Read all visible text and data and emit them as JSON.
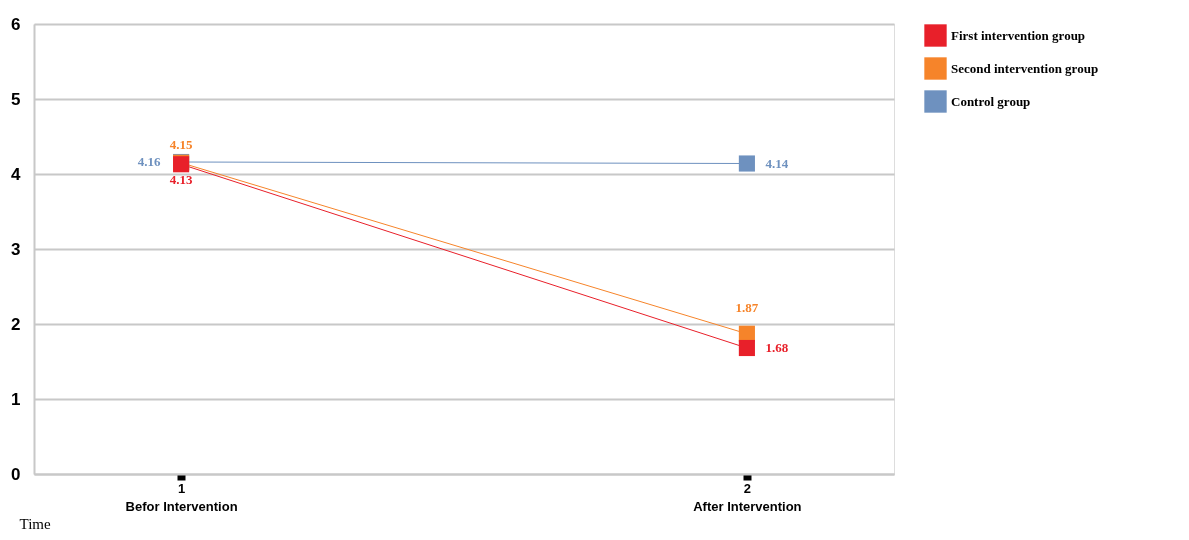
{
  "chart_data": {
    "type": "line",
    "xlabel": "Time",
    "categories": [
      "1\nBefor Intervention",
      "2\nAfter Intervention"
    ],
    "series": [
      {
        "name": "First intervention group",
        "color": "#e8202a",
        "values": [
          4.13,
          1.68
        ]
      },
      {
        "name": "Second intervention group",
        "color": "#f6842a",
        "values": [
          4.15,
          1.87
        ]
      },
      {
        "name": "Control group",
        "color": "#6e91bf",
        "values": [
          4.16,
          4.14
        ]
      }
    ],
    "ylim": [
      0,
      6
    ],
    "yticks": [
      0,
      1,
      2,
      3,
      4,
      5,
      6
    ],
    "grid": "y",
    "legend": "right",
    "marker": "square",
    "line_style": "solid",
    "data_labels": true
  }
}
